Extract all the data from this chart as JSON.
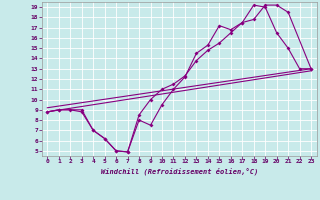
{
  "xlabel": "Windchill (Refroidissement éolien,°C)",
  "xlim": [
    -0.5,
    23.5
  ],
  "ylim": [
    4.5,
    19.5
  ],
  "xticks": [
    0,
    1,
    2,
    3,
    4,
    5,
    6,
    7,
    8,
    9,
    10,
    11,
    12,
    13,
    14,
    15,
    16,
    17,
    18,
    19,
    20,
    21,
    22,
    23
  ],
  "yticks": [
    5,
    6,
    7,
    8,
    9,
    10,
    11,
    12,
    13,
    14,
    15,
    16,
    17,
    18,
    19
  ],
  "bg_color": "#c8eaea",
  "grid_color": "#aad4d4",
  "line_color": "#880080",
  "line1_x": [
    0,
    1,
    2,
    3,
    4,
    5,
    6,
    7,
    8,
    9,
    10,
    11,
    12,
    13,
    14,
    15,
    16,
    17,
    18,
    19,
    20,
    21,
    22,
    23
  ],
  "line1_y": [
    8.8,
    9.0,
    9.0,
    8.8,
    7.0,
    6.2,
    5.0,
    4.9,
    8.0,
    7.5,
    9.5,
    11.0,
    12.2,
    14.5,
    15.3,
    17.2,
    16.8,
    17.5,
    19.2,
    19.0,
    16.5,
    15.0,
    13.0,
    13.0
  ],
  "line2_x": [
    0,
    1,
    3,
    4,
    5,
    6,
    7,
    8,
    9,
    10,
    11,
    12,
    13,
    14,
    15,
    16,
    17,
    18,
    19,
    20,
    21,
    23
  ],
  "line2_y": [
    8.8,
    9.0,
    9.0,
    7.0,
    6.2,
    5.0,
    4.9,
    8.5,
    10.0,
    11.0,
    11.5,
    12.3,
    13.8,
    14.8,
    15.5,
    16.5,
    17.5,
    17.8,
    19.2,
    19.2,
    18.5,
    13.0
  ],
  "line3_x": [
    0,
    23
  ],
  "line3_y": [
    8.8,
    12.8
  ],
  "line4_x": [
    0,
    23
  ],
  "line4_y": [
    9.2,
    13.0
  ]
}
